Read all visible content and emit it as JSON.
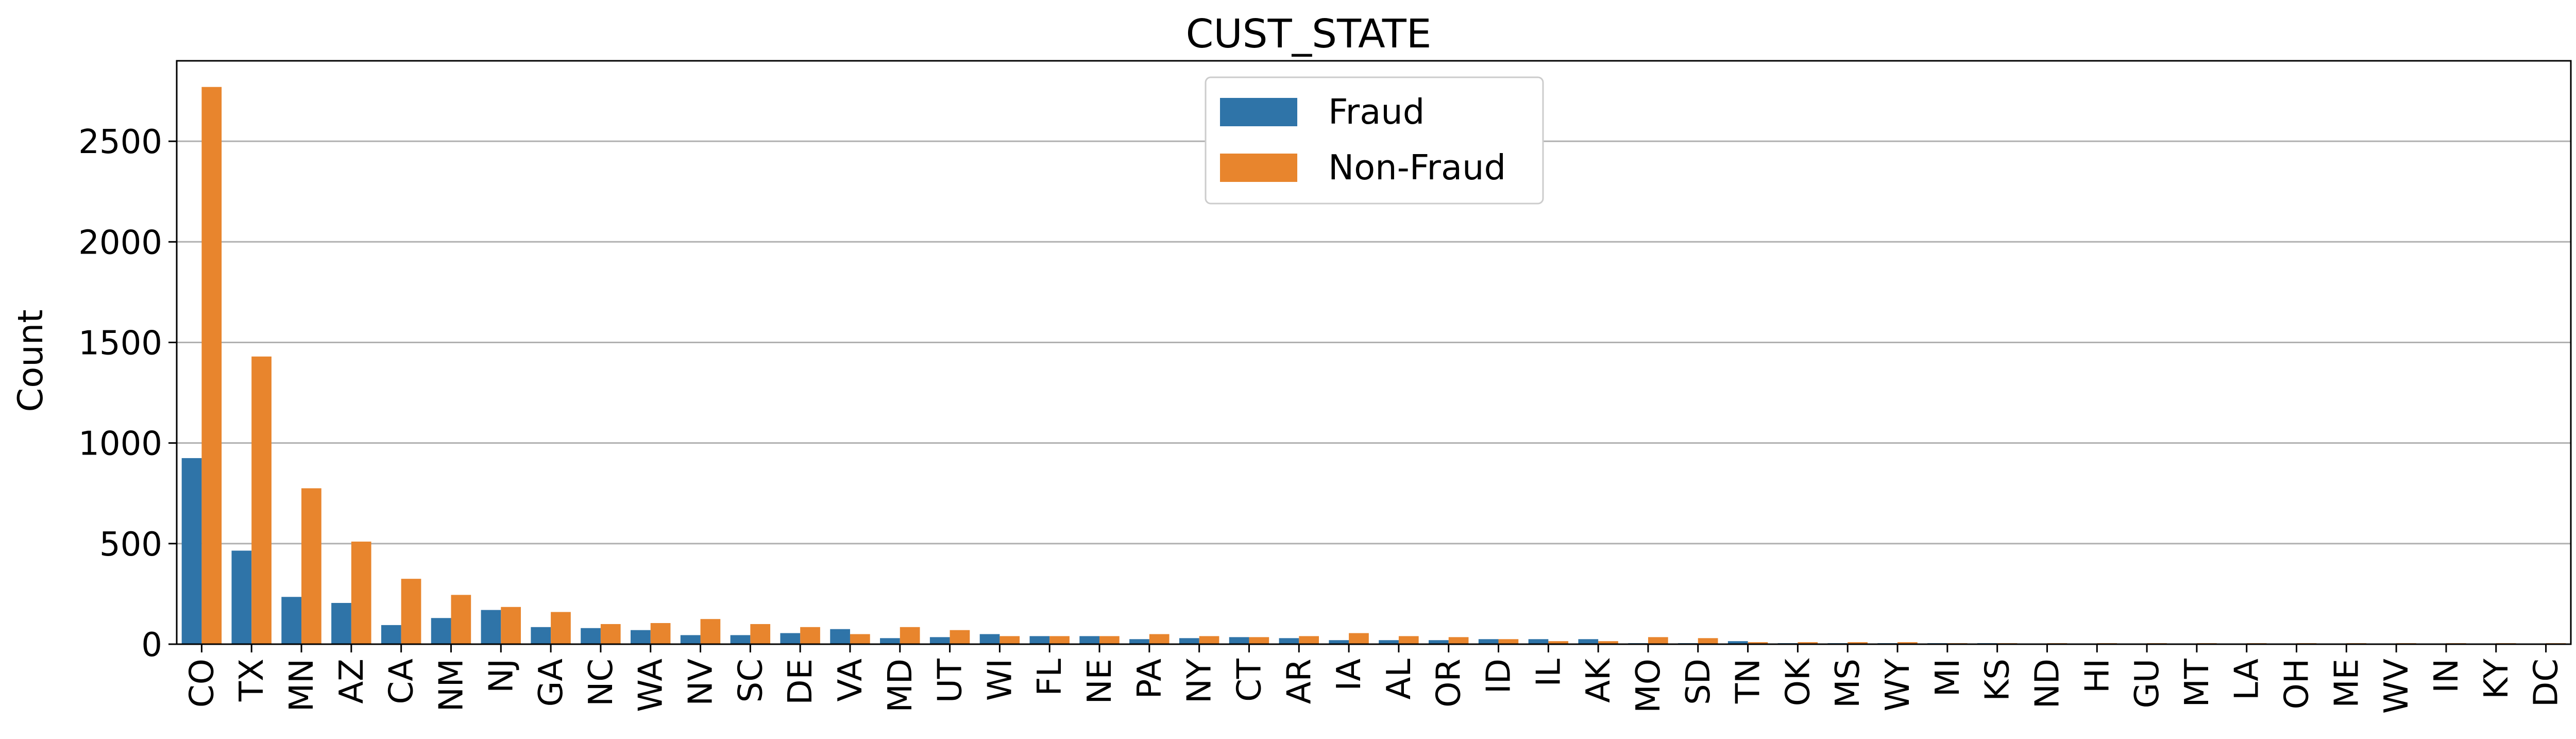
{
  "chart_data": {
    "type": "bar",
    "title": "CUST_STATE",
    "xlabel": "",
    "ylabel": "Count",
    "ylim": [
      0,
      2900
    ],
    "yticks": [
      0,
      500,
      1000,
      1500,
      2000,
      2500
    ],
    "grid": "y",
    "legend_position": "top-center",
    "categories": [
      "CO",
      "TX",
      "MN",
      "AZ",
      "CA",
      "NM",
      "NJ",
      "GA",
      "NC",
      "WA",
      "NV",
      "SC",
      "DE",
      "VA",
      "MD",
      "UT",
      "WI",
      "FL",
      "NE",
      "PA",
      "NY",
      "CT",
      "AR",
      "IA",
      "AL",
      "OR",
      "ID",
      "IL",
      "AK",
      "MO",
      "SD",
      "TN",
      "OK",
      "MS",
      "WY",
      "MI",
      "KS",
      "ND",
      "HI",
      "GU",
      "MT",
      "LA",
      "OH",
      "ME",
      "WV",
      "IN",
      "KY",
      "DC"
    ],
    "series": [
      {
        "name": "Fraud",
        "color": "#2f74a8",
        "values": [
          925,
          465,
          235,
          205,
          95,
          130,
          170,
          85,
          80,
          70,
          45,
          45,
          55,
          75,
          30,
          35,
          50,
          40,
          40,
          25,
          30,
          35,
          30,
          20,
          20,
          20,
          25,
          25,
          25,
          5,
          5,
          15,
          5,
          5,
          5,
          5,
          5,
          0,
          0,
          0,
          0,
          0,
          0,
          0,
          0,
          0,
          0,
          0
        ]
      },
      {
        "name": "Non-Fraud",
        "color": "#e8852d",
        "values": [
          2770,
          1430,
          775,
          510,
          325,
          245,
          185,
          160,
          100,
          105,
          125,
          100,
          85,
          50,
          85,
          70,
          40,
          40,
          40,
          50,
          40,
          35,
          40,
          55,
          40,
          35,
          25,
          15,
          15,
          35,
          30,
          10,
          10,
          10,
          10,
          5,
          5,
          5,
          5,
          5,
          5,
          5,
          5,
          5,
          5,
          5,
          5,
          5
        ]
      }
    ]
  }
}
